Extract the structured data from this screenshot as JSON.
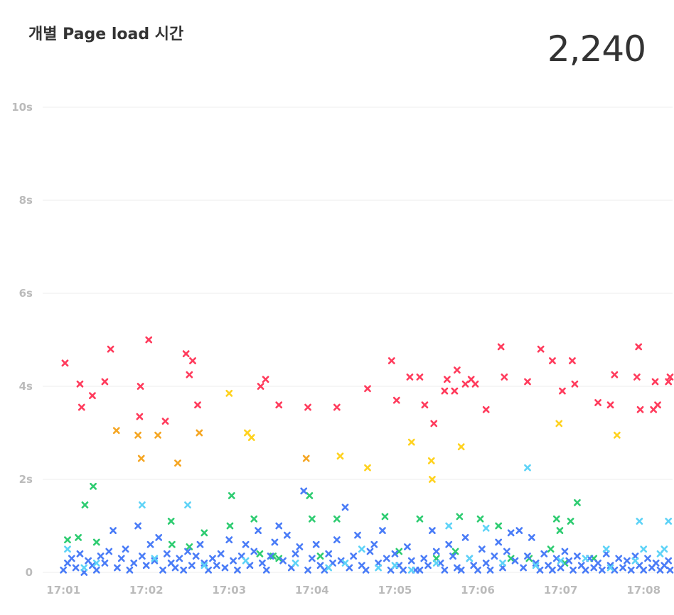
{
  "header": {
    "title": "개별 Page load 시간",
    "total": "2,240"
  },
  "chart_data": {
    "type": "scatter",
    "title": "개별 Page load 시간",
    "xlabel": "",
    "ylabel": "",
    "ylim": [
      0,
      10
    ],
    "y_ticks": [
      {
        "value": 10,
        "label": "10s"
      },
      {
        "value": 8,
        "label": "8s"
      },
      {
        "value": 6,
        "label": "6s"
      },
      {
        "value": 4,
        "label": "4s"
      },
      {
        "value": 2,
        "label": "2s"
      },
      {
        "value": 0,
        "label": "0"
      }
    ],
    "x_ticks": [
      {
        "value": 1,
        "label": "17:01"
      },
      {
        "value": 2,
        "label": "17:02"
      },
      {
        "value": 3,
        "label": "17:03"
      },
      {
        "value": 4,
        "label": "17:04"
      },
      {
        "value": 5,
        "label": "17:05"
      },
      {
        "value": 6,
        "label": "17:06"
      },
      {
        "value": 7,
        "label": "17:07"
      },
      {
        "value": 8,
        "label": "17:08"
      }
    ],
    "xlim": [
      0.75,
      8.35
    ],
    "grid": true,
    "marker": "x",
    "series": [
      {
        "color": "#ff3b5c",
        "points": [
          [
            1.02,
            4.5
          ],
          [
            1.2,
            4.05
          ],
          [
            1.22,
            3.55
          ],
          [
            1.35,
            3.8
          ],
          [
            1.5,
            4.1
          ],
          [
            1.57,
            4.8
          ],
          [
            1.92,
            3.35
          ],
          [
            1.93,
            4.0
          ],
          [
            2.03,
            5.0
          ],
          [
            2.23,
            3.25
          ],
          [
            2.48,
            4.7
          ],
          [
            2.52,
            4.25
          ],
          [
            2.56,
            4.55
          ],
          [
            2.62,
            3.6
          ],
          [
            3.38,
            4.0
          ],
          [
            3.44,
            4.15
          ],
          [
            3.6,
            3.6
          ],
          [
            3.95,
            3.55
          ],
          [
            4.3,
            3.55
          ],
          [
            4.67,
            3.95
          ],
          [
            4.96,
            4.55
          ],
          [
            5.02,
            3.7
          ],
          [
            5.18,
            4.2
          ],
          [
            5.3,
            4.2
          ],
          [
            5.36,
            3.6
          ],
          [
            5.47,
            3.2
          ],
          [
            5.6,
            3.9
          ],
          [
            5.63,
            4.15
          ],
          [
            5.72,
            3.9
          ],
          [
            5.75,
            4.35
          ],
          [
            5.85,
            4.05
          ],
          [
            5.92,
            4.15
          ],
          [
            5.97,
            4.05
          ],
          [
            6.1,
            3.5
          ],
          [
            6.28,
            4.85
          ],
          [
            6.32,
            4.2
          ],
          [
            6.6,
            4.1
          ],
          [
            6.76,
            4.8
          ],
          [
            6.9,
            4.55
          ],
          [
            7.02,
            3.9
          ],
          [
            7.14,
            4.55
          ],
          [
            7.17,
            4.05
          ],
          [
            7.45,
            3.65
          ],
          [
            7.6,
            3.6
          ],
          [
            7.65,
            4.25
          ],
          [
            7.92,
            4.2
          ],
          [
            7.94,
            4.85
          ],
          [
            7.96,
            3.5
          ],
          [
            8.12,
            3.5
          ],
          [
            8.14,
            4.1
          ],
          [
            8.17,
            3.6
          ],
          [
            8.3,
            4.1
          ],
          [
            8.32,
            4.2
          ]
        ]
      },
      {
        "color": "#f5a623",
        "points": [
          [
            1.64,
            3.05
          ],
          [
            1.9,
            2.95
          ],
          [
            1.94,
            2.45
          ],
          [
            2.14,
            2.95
          ],
          [
            2.38,
            2.35
          ],
          [
            2.64,
            3.0
          ],
          [
            3.93,
            2.45
          ]
        ]
      },
      {
        "color": "#ffd21f",
        "points": [
          [
            3.0,
            3.85
          ],
          [
            3.22,
            3.0
          ],
          [
            3.27,
            2.9
          ],
          [
            4.34,
            2.5
          ],
          [
            4.67,
            2.25
          ],
          [
            5.2,
            2.8
          ],
          [
            5.44,
            2.4
          ],
          [
            5.45,
            2.0
          ],
          [
            5.8,
            2.7
          ],
          [
            6.98,
            3.2
          ],
          [
            7.68,
            2.95
          ]
        ]
      },
      {
        "color": "#2ecc71",
        "points": [
          [
            1.05,
            0.7
          ],
          [
            1.18,
            0.75
          ],
          [
            1.26,
            1.45
          ],
          [
            1.36,
            1.85
          ],
          [
            1.4,
            0.65
          ],
          [
            2.3,
            1.1
          ],
          [
            2.31,
            0.6
          ],
          [
            2.52,
            0.55
          ],
          [
            2.7,
            0.85
          ],
          [
            3.03,
            1.65
          ],
          [
            3.01,
            1.0
          ],
          [
            3.3,
            1.15
          ],
          [
            3.37,
            0.4
          ],
          [
            3.53,
            0.35
          ],
          [
            3.6,
            0.3
          ],
          [
            3.97,
            1.65
          ],
          [
            4.0,
            1.15
          ],
          [
            4.1,
            0.35
          ],
          [
            4.3,
            1.15
          ],
          [
            4.88,
            1.2
          ],
          [
            5.05,
            0.45
          ],
          [
            5.3,
            1.15
          ],
          [
            5.5,
            0.3
          ],
          [
            5.73,
            0.45
          ],
          [
            5.78,
            1.2
          ],
          [
            6.03,
            1.15
          ],
          [
            6.25,
            1.0
          ],
          [
            6.4,
            0.3
          ],
          [
            6.62,
            0.3
          ],
          [
            6.88,
            0.5
          ],
          [
            6.95,
            1.15
          ],
          [
            6.99,
            0.9
          ],
          [
            7.05,
            0.2
          ],
          [
            7.12,
            1.1
          ],
          [
            7.2,
            1.5
          ],
          [
            7.4,
            0.3
          ]
        ]
      },
      {
        "color": "#4a7cf7",
        "points": [
          [
            1.0,
            0.05
          ],
          [
            1.05,
            0.2
          ],
          [
            1.1,
            0.3
          ],
          [
            1.15,
            0.1
          ],
          [
            1.2,
            0.4
          ],
          [
            1.25,
            0.0
          ],
          [
            1.3,
            0.25
          ],
          [
            1.35,
            0.15
          ],
          [
            1.4,
            0.05
          ],
          [
            1.45,
            0.35
          ],
          [
            1.5,
            0.2
          ],
          [
            1.55,
            0.45
          ],
          [
            1.6,
            0.9
          ],
          [
            1.65,
            0.1
          ],
          [
            1.7,
            0.3
          ],
          [
            1.75,
            0.5
          ],
          [
            1.8,
            0.05
          ],
          [
            1.85,
            0.2
          ],
          [
            1.9,
            1.0
          ],
          [
            1.95,
            0.35
          ],
          [
            2.0,
            0.15
          ],
          [
            2.05,
            0.6
          ],
          [
            2.1,
            0.25
          ],
          [
            2.15,
            0.75
          ],
          [
            2.2,
            0.05
          ],
          [
            2.25,
            0.4
          ],
          [
            2.3,
            0.2
          ],
          [
            2.35,
            0.1
          ],
          [
            2.4,
            0.3
          ],
          [
            2.45,
            0.05
          ],
          [
            2.5,
            0.45
          ],
          [
            2.55,
            0.15
          ],
          [
            2.6,
            0.35
          ],
          [
            2.65,
            0.6
          ],
          [
            2.7,
            0.2
          ],
          [
            2.75,
            0.05
          ],
          [
            2.8,
            0.3
          ],
          [
            2.85,
            0.15
          ],
          [
            2.9,
            0.4
          ],
          [
            2.95,
            0.1
          ],
          [
            3.0,
            0.7
          ],
          [
            3.05,
            0.25
          ],
          [
            3.1,
            0.05
          ],
          [
            3.15,
            0.35
          ],
          [
            3.2,
            0.6
          ],
          [
            3.25,
            0.15
          ],
          [
            3.3,
            0.45
          ],
          [
            3.35,
            0.9
          ],
          [
            3.4,
            0.2
          ],
          [
            3.45,
            0.05
          ],
          [
            3.5,
            0.35
          ],
          [
            3.55,
            0.65
          ],
          [
            3.6,
            1.0
          ],
          [
            3.65,
            0.25
          ],
          [
            3.7,
            0.8
          ],
          [
            3.75,
            0.1
          ],
          [
            3.8,
            0.4
          ],
          [
            3.85,
            0.55
          ],
          [
            3.9,
            1.75
          ],
          [
            3.95,
            0.05
          ],
          [
            4.0,
            0.3
          ],
          [
            4.05,
            0.6
          ],
          [
            4.1,
            0.15
          ],
          [
            4.15,
            0.05
          ],
          [
            4.2,
            0.4
          ],
          [
            4.25,
            0.2
          ],
          [
            4.3,
            0.7
          ],
          [
            4.35,
            0.25
          ],
          [
            4.4,
            1.4
          ],
          [
            4.45,
            0.1
          ],
          [
            4.5,
            0.35
          ],
          [
            4.55,
            0.8
          ],
          [
            4.6,
            0.15
          ],
          [
            4.65,
            0.05
          ],
          [
            4.7,
            0.45
          ],
          [
            4.75,
            0.6
          ],
          [
            4.8,
            0.2
          ],
          [
            4.85,
            0.9
          ],
          [
            4.9,
            0.3
          ],
          [
            4.95,
            0.05
          ],
          [
            5.0,
            0.4
          ],
          [
            5.05,
            0.15
          ],
          [
            5.1,
            0.05
          ],
          [
            5.15,
            0.55
          ],
          [
            5.2,
            0.25
          ],
          [
            5.25,
            0.05
          ],
          [
            5.3,
            0.05
          ],
          [
            5.35,
            0.3
          ],
          [
            5.4,
            0.15
          ],
          [
            5.45,
            0.9
          ],
          [
            5.5,
            0.45
          ],
          [
            5.55,
            0.2
          ],
          [
            5.6,
            0.05
          ],
          [
            5.65,
            0.6
          ],
          [
            5.7,
            0.35
          ],
          [
            5.75,
            0.1
          ],
          [
            5.8,
            0.05
          ],
          [
            5.85,
            0.75
          ],
          [
            5.9,
            0.3
          ],
          [
            5.95,
            0.15
          ],
          [
            6.0,
            0.05
          ],
          [
            6.05,
            0.5
          ],
          [
            6.1,
            0.2
          ],
          [
            6.15,
            0.05
          ],
          [
            6.2,
            0.35
          ],
          [
            6.25,
            0.65
          ],
          [
            6.3,
            0.1
          ],
          [
            6.35,
            0.45
          ],
          [
            6.4,
            0.85
          ],
          [
            6.45,
            0.25
          ],
          [
            6.5,
            0.9
          ],
          [
            6.55,
            0.1
          ],
          [
            6.6,
            0.35
          ],
          [
            6.65,
            0.75
          ],
          [
            6.7,
            0.2
          ],
          [
            6.75,
            0.05
          ],
          [
            6.8,
            0.4
          ],
          [
            6.85,
            0.15
          ],
          [
            6.9,
            0.05
          ],
          [
            6.95,
            0.3
          ],
          [
            7.0,
            0.1
          ],
          [
            7.05,
            0.45
          ],
          [
            7.1,
            0.25
          ],
          [
            7.15,
            0.05
          ],
          [
            7.2,
            0.35
          ],
          [
            7.25,
            0.15
          ],
          [
            7.3,
            0.05
          ],
          [
            7.35,
            0.3
          ],
          [
            7.4,
            0.1
          ],
          [
            7.45,
            0.2
          ],
          [
            7.5,
            0.05
          ],
          [
            7.55,
            0.4
          ],
          [
            7.6,
            0.15
          ],
          [
            7.65,
            0.05
          ],
          [
            7.7,
            0.3
          ],
          [
            7.75,
            0.1
          ],
          [
            7.8,
            0.25
          ],
          [
            7.85,
            0.05
          ],
          [
            7.9,
            0.35
          ],
          [
            7.95,
            0.15
          ],
          [
            8.0,
            0.05
          ],
          [
            8.05,
            0.3
          ],
          [
            8.1,
            0.1
          ],
          [
            8.15,
            0.2
          ],
          [
            8.2,
            0.05
          ],
          [
            8.25,
            0.15
          ],
          [
            8.3,
            0.25
          ],
          [
            8.32,
            0.05
          ]
        ]
      },
      {
        "color": "#5ed3f7",
        "points": [
          [
            1.05,
            0.5
          ],
          [
            1.25,
            0.1
          ],
          [
            1.4,
            0.2
          ],
          [
            1.95,
            1.45
          ],
          [
            2.1,
            0.3
          ],
          [
            2.5,
            1.45
          ],
          [
            2.7,
            0.15
          ],
          [
            3.2,
            0.25
          ],
          [
            3.8,
            0.2
          ],
          [
            4.2,
            0.1
          ],
          [
            4.4,
            0.2
          ],
          [
            4.6,
            0.5
          ],
          [
            4.8,
            0.1
          ],
          [
            5.0,
            0.15
          ],
          [
            5.2,
            0.05
          ],
          [
            5.5,
            0.2
          ],
          [
            5.65,
            1.0
          ],
          [
            5.9,
            0.3
          ],
          [
            6.1,
            0.95
          ],
          [
            6.3,
            0.2
          ],
          [
            6.6,
            2.25
          ],
          [
            6.7,
            0.15
          ],
          [
            7.0,
            0.25
          ],
          [
            7.3,
            0.3
          ],
          [
            7.55,
            0.5
          ],
          [
            7.6,
            0.1
          ],
          [
            7.9,
            0.25
          ],
          [
            7.95,
            1.1
          ],
          [
            8.0,
            0.5
          ],
          [
            8.2,
            0.4
          ],
          [
            8.25,
            0.5
          ],
          [
            8.3,
            1.1
          ]
        ]
      }
    ]
  }
}
